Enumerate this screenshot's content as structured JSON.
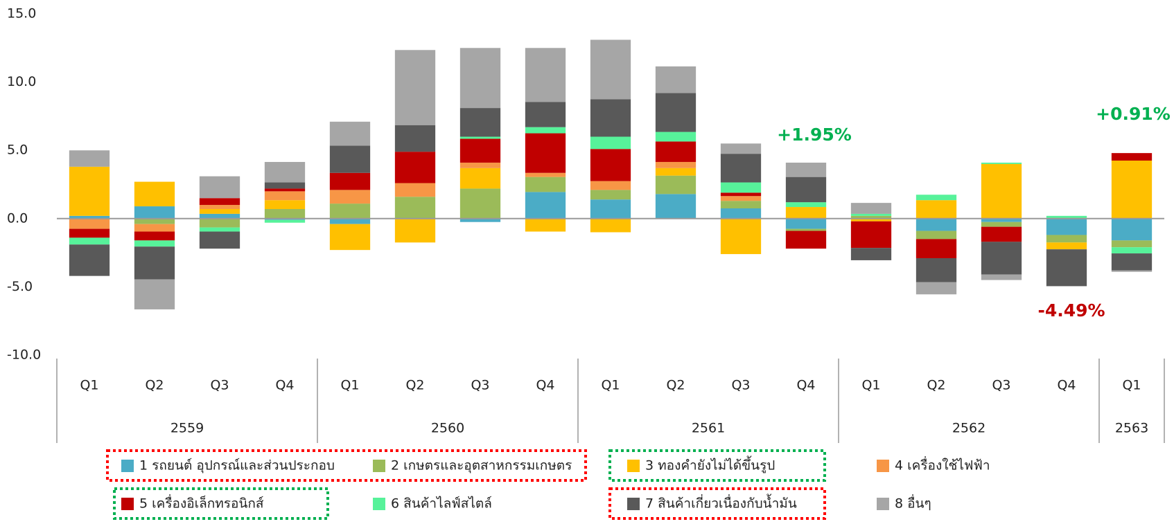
{
  "chart_data": {
    "type": "stacked_bar",
    "categories": [
      "Q1",
      "Q2",
      "Q3",
      "Q4",
      "Q1",
      "Q2",
      "Q3",
      "Q4",
      "Q1",
      "Q2",
      "Q3",
      "Q4",
      "Q1",
      "Q2",
      "Q3",
      "Q4",
      "Q1"
    ],
    "x_groups": [
      "2559",
      "2560",
      "2561",
      "2562",
      "2563"
    ],
    "series": [
      {
        "name": "1 รถยนต์ อุปกรณ์และส่วนประกอบ",
        "color": "#4bacc6",
        "values": [
          0.2,
          0.9,
          0.35,
          -0.1,
          -0.4,
          0,
          -0.25,
          1.95,
          1.4,
          1.8,
          0.75,
          -0.75,
          0,
          -0.9,
          -0.25,
          -1.2,
          -1.6
        ]
      },
      {
        "name": "2 เกษตรและอุตสาหกรรมเกษตร",
        "color": "#9bbb59",
        "values": [
          0,
          -0.4,
          -0.65,
          0.7,
          1.1,
          1.6,
          2.2,
          1.1,
          0.7,
          1.35,
          0.55,
          -0.15,
          0.2,
          -0.6,
          -0.35,
          -0.55,
          -0.5
        ]
      },
      {
        "name": "3 ทองคำยังไม่ได้ขึ้นรูป",
        "color": "#ffc000",
        "values": [
          3.6,
          1.8,
          0.35,
          0.65,
          -1.9,
          -1.75,
          1.5,
          -0.95,
          -1.0,
          0.55,
          -2.6,
          0.85,
          -0.2,
          1.35,
          4.0,
          -0.5,
          4.25
        ]
      },
      {
        "name": "4 เครื่องใช้ไฟฟ้า",
        "color": "#f79646",
        "values": [
          -0.75,
          -0.55,
          0.3,
          0.65,
          1.0,
          1.0,
          0.4,
          0.3,
          0.65,
          0.45,
          0.35,
          0,
          0,
          0,
          0,
          0,
          0
        ]
      },
      {
        "name": "5 เครื่องอิเล็กทรอนิกส์",
        "color": "#c00000",
        "values": [
          -0.65,
          -0.65,
          0.5,
          0.2,
          1.25,
          2.3,
          1.75,
          2.9,
          2.35,
          1.5,
          0.25,
          -1.3,
          -1.95,
          -1.4,
          -1.1,
          0,
          0.55
        ]
      },
      {
        "name": "6 สินค้าไลฟ์สไตล์",
        "color": "#57f29a",
        "values": [
          -0.5,
          -0.45,
          -0.3,
          -0.2,
          0,
          0,
          0.15,
          0.45,
          0.9,
          0.7,
          0.75,
          0.35,
          0.15,
          0.4,
          0.1,
          0.2,
          -0.45
        ]
      },
      {
        "name": "7 สินค้าเกี่ยวเนื่องกับน้ำมัน",
        "color": "#595959",
        "values": [
          -2.3,
          -2.4,
          -1.25,
          0.45,
          2.0,
          1.95,
          2.1,
          1.85,
          2.75,
          2.85,
          2.1,
          1.85,
          -0.9,
          -1.75,
          -2.4,
          -2.7,
          -1.25
        ]
      },
      {
        "name": "8 อื่นๆ",
        "color": "#a6a6a6",
        "values": [
          1.2,
          -2.2,
          1.6,
          1.5,
          1.75,
          5.5,
          4.4,
          3.95,
          4.35,
          1.95,
          0.75,
          1.05,
          0.8,
          -0.9,
          -0.4,
          0,
          -0.1
        ]
      }
    ],
    "ylim": [
      -10,
      15
    ],
    "yticks": [
      {
        "value": -10,
        "label": "-10.0"
      },
      {
        "value": -5,
        "label": "-5.0"
      },
      {
        "value": 0,
        "label": "0.0"
      },
      {
        "value": 5,
        "label": "5.0"
      },
      {
        "value": 10,
        "label": "10.0"
      },
      {
        "value": 15,
        "label": "15.0"
      }
    ],
    "annotations": [
      {
        "text": "+1.95%",
        "color": "#00b050"
      },
      {
        "text": "-4.49%",
        "color": "#c00000"
      },
      {
        "text": "+0.91%",
        "color": "#00b050"
      }
    ]
  }
}
